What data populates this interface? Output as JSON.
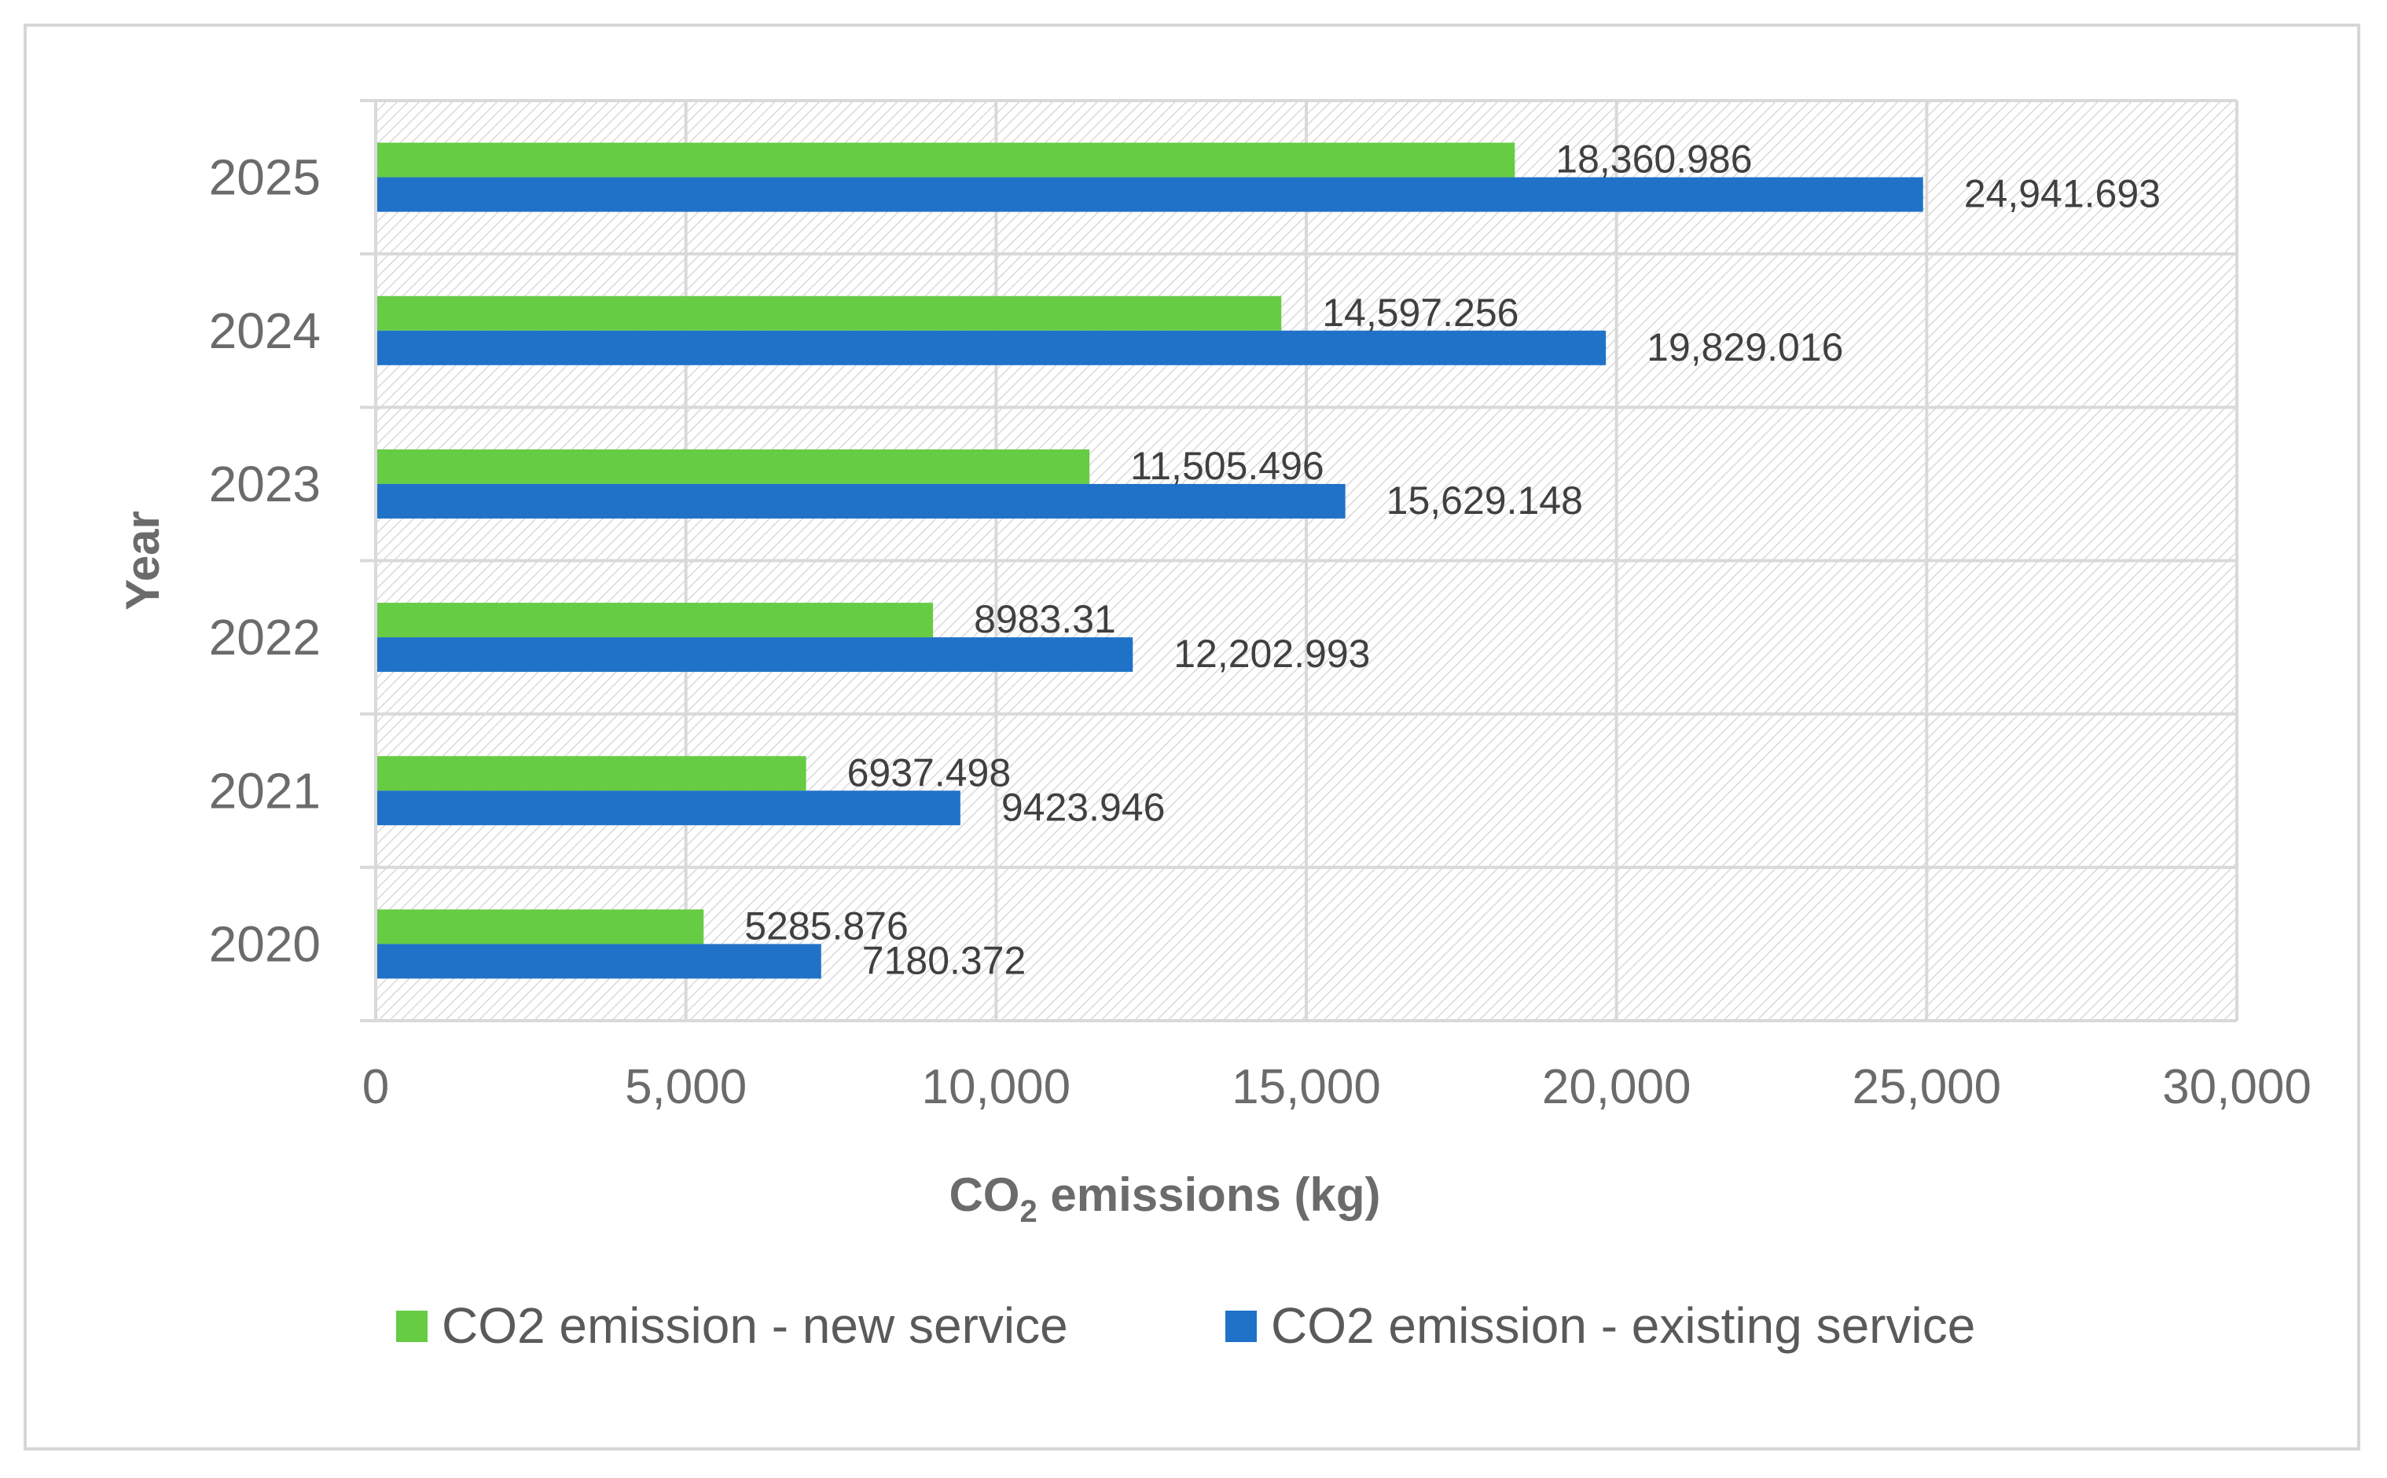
{
  "chart_data": {
    "type": "bar",
    "orientation": "horizontal",
    "categories": [
      "2020",
      "2021",
      "2022",
      "2023",
      "2024",
      "2025"
    ],
    "series": [
      {
        "name": "CO2 emission - new service",
        "color": "#66cc44",
        "values": [
          5285.876,
          6937.498,
          8983.31,
          11505.496,
          14597.256,
          18360.986
        ],
        "labels": [
          "5285.876",
          "6937.498",
          "8983.31",
          "11,505.496",
          "14,597.256",
          "18,360.986"
        ]
      },
      {
        "name": "CO2 emission - existing service",
        "color": "#1f72c8",
        "values": [
          7180.372,
          9423.946,
          12202.993,
          15629.148,
          19829.016,
          24941.693
        ],
        "labels": [
          "7180.372",
          "9423.946",
          "12,202.993",
          "15,629.148",
          "19,829.016",
          "24,941.693"
        ]
      }
    ],
    "xlim": [
      0,
      30000
    ],
    "xticks": [
      0,
      5000,
      10000,
      15000,
      20000,
      25000,
      30000
    ],
    "xtick_labels": [
      "0",
      "5,000",
      "10,000",
      "15,000",
      "20,000",
      "25,000",
      "30,000"
    ],
    "xlabel_main": "CO",
    "xlabel_sub": "2",
    "xlabel_rest": " emissions (kg)",
    "ylabel": "Year",
    "grid": true,
    "legend_position": "bottom"
  }
}
